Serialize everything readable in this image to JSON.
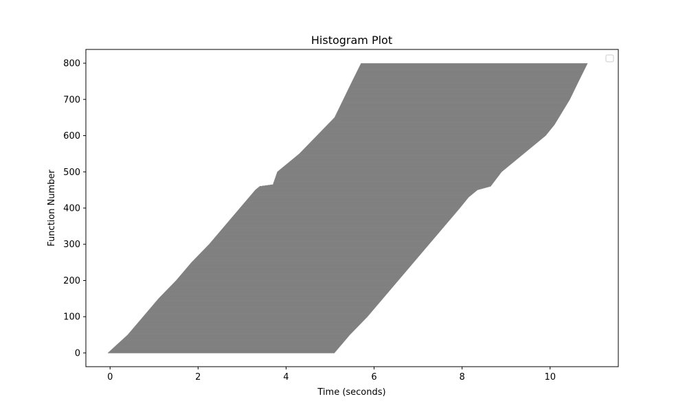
{
  "chart_data": {
    "type": "bar",
    "orientation": "horizontal-range",
    "title": "Histogram Plot",
    "xlabel": "Time (seconds)",
    "ylabel": "Function Number",
    "xlim": [
      -0.55,
      11.55
    ],
    "ylim": [
      -38,
      838
    ],
    "x_ticks": [
      0,
      2,
      4,
      6,
      8,
      10
    ],
    "y_ticks": [
      0,
      100,
      200,
      300,
      400,
      500,
      600,
      700,
      800
    ],
    "x_tick_labels": [
      "0",
      "2",
      "4",
      "6",
      "8",
      "10"
    ],
    "y_tick_labels": [
      "0",
      "100",
      "200",
      "300",
      "400",
      "500",
      "600",
      "700",
      "800"
    ],
    "grid": false,
    "legend": {
      "position": "upper-right",
      "entries": []
    },
    "bar_color": "#808080",
    "bar_count": 800,
    "start_edge": [
      [
        0,
        -0.05
      ],
      [
        50,
        0.4
      ],
      [
        100,
        0.75
      ],
      [
        150,
        1.1
      ],
      [
        200,
        1.5
      ],
      [
        250,
        1.85
      ],
      [
        300,
        2.25
      ],
      [
        350,
        2.6
      ],
      [
        400,
        2.95
      ],
      [
        450,
        3.3
      ],
      [
        460,
        3.4
      ],
      [
        465,
        3.7
      ],
      [
        500,
        3.8
      ],
      [
        550,
        4.3
      ],
      [
        600,
        4.7
      ],
      [
        650,
        5.1
      ],
      [
        700,
        5.3
      ],
      [
        750,
        5.5
      ],
      [
        799,
        5.7
      ]
    ],
    "end_edge": [
      [
        0,
        5.1
      ],
      [
        50,
        5.45
      ],
      [
        100,
        5.85
      ],
      [
        150,
        6.2
      ],
      [
        200,
        6.55
      ],
      [
        250,
        6.9
      ],
      [
        300,
        7.25
      ],
      [
        350,
        7.6
      ],
      [
        400,
        7.95
      ],
      [
        430,
        8.15
      ],
      [
        450,
        8.35
      ],
      [
        460,
        8.65
      ],
      [
        500,
        8.9
      ],
      [
        550,
        9.4
      ],
      [
        600,
        9.9
      ],
      [
        630,
        10.1
      ],
      [
        650,
        10.2
      ],
      [
        700,
        10.45
      ],
      [
        750,
        10.65
      ],
      [
        799,
        10.85
      ]
    ]
  }
}
